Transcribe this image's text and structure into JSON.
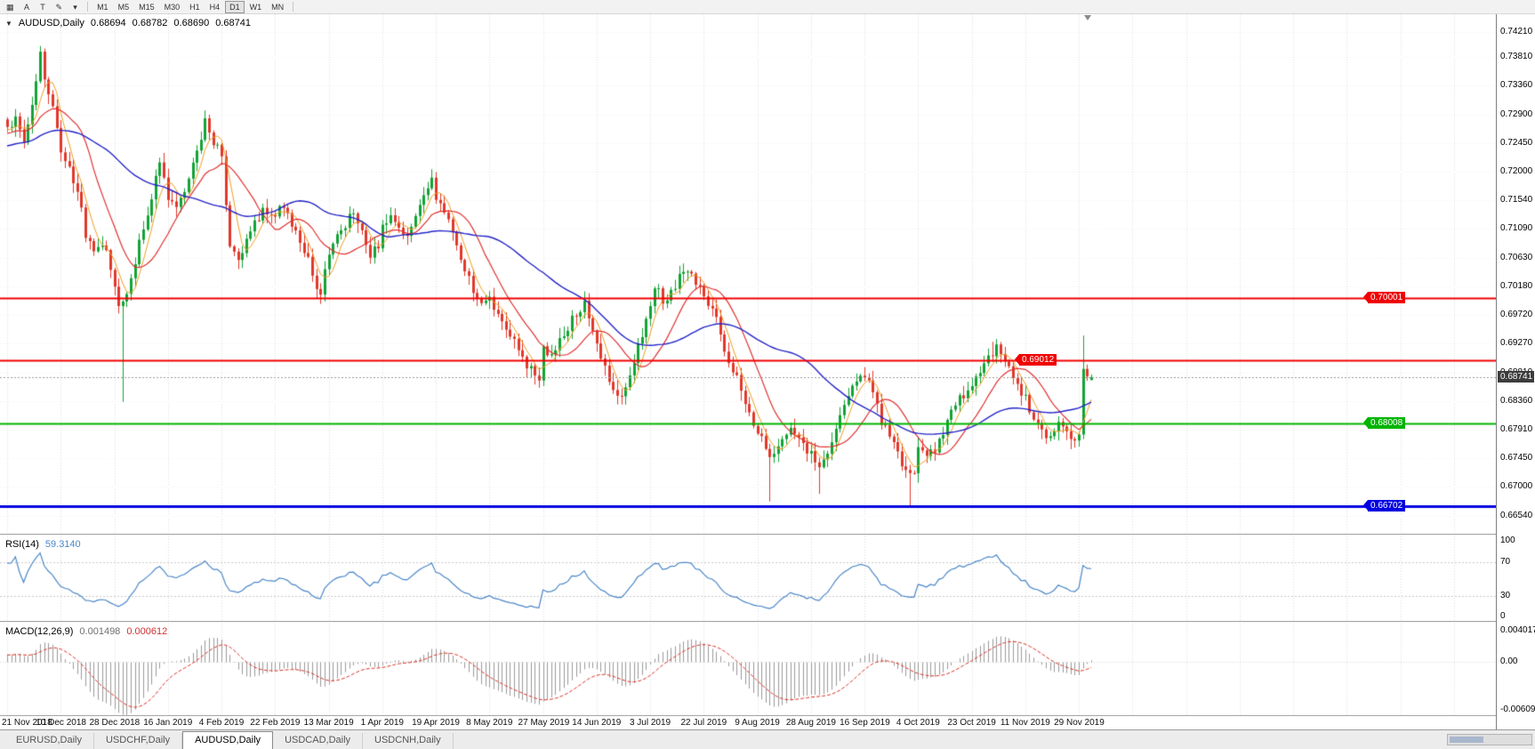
{
  "toolbar": {
    "tools": [
      {
        "name": "charts-grid",
        "glyph": "▦"
      },
      {
        "name": "cursor-a",
        "glyph": "A"
      },
      {
        "name": "text-label",
        "glyph": "T"
      },
      {
        "name": "draw-pencil",
        "glyph": "✎"
      },
      {
        "name": "draw-dropdown",
        "glyph": "▾"
      }
    ],
    "timeframes": [
      "M1",
      "M5",
      "M15",
      "M30",
      "H1",
      "H4",
      "D1",
      "W1",
      "MN"
    ],
    "active_timeframe": "D1"
  },
  "chart": {
    "title_icon": "▼",
    "symbol_period": "AUDUSD,Daily",
    "ohlc": {
      "open": "0.68694",
      "high": "0.68782",
      "low": "0.68690",
      "close": "0.68741"
    }
  },
  "price_axis": {
    "ticks": [
      "0.74210",
      "0.73810",
      "0.73360",
      "0.72900",
      "0.72450",
      "0.72000",
      "0.71540",
      "0.71090",
      "0.70630",
      "0.70180",
      "0.69720",
      "0.69270",
      "0.68810",
      "0.68360",
      "0.67910",
      "0.67450",
      "0.67000",
      "0.66540"
    ]
  },
  "rsi": {
    "label": "RSI(14)",
    "value": "59.3140",
    "ticks": [
      "100",
      "70",
      "30",
      "0"
    ],
    "levels": [
      70,
      30
    ],
    "color": "#4a86c8"
  },
  "macd": {
    "label": "MACD(12,26,9)",
    "macd_value": "0.001498",
    "signal_value": "0.000612",
    "ticks": [
      "0.004017",
      "0.00",
      "-0.00609"
    ],
    "histogram_color": "#9a9a9a",
    "signal_color": "#d93025"
  },
  "tabs": {
    "items": [
      "EURUSD,Daily",
      "USDCHF,Daily",
      "AUDUSD,Daily",
      "USDCAD,Daily",
      "USDCNH,Daily"
    ],
    "active": "AUDUSD,Daily"
  },
  "chart_data": {
    "type": "candlestick",
    "symbol": "AUDUSD",
    "period": "Daily",
    "title": "AUDUSD,Daily 0.68694 0.68782 0.68690 0.68741",
    "bid": 0.68741,
    "last": {
      "o": 0.68694,
      "h": 0.68782,
      "l": 0.6869,
      "c": 0.68741
    },
    "y_range": [
      0.6626,
      0.7449
    ],
    "x_ticks": [
      "21 Nov 2018",
      "10 Dec 2018",
      "28 Dec 2018",
      "16 Jan 2019",
      "4 Feb 2019",
      "22 Feb 2019",
      "13 Mar 2019",
      "1 Apr 2019",
      "19 Apr 2019",
      "8 May 2019",
      "27 May 2019",
      "14 Jun 2019",
      "3 Jul 2019",
      "22 Jul 2019",
      "9 Aug 2019",
      "28 Aug 2019",
      "16 Sep 2019",
      "4 Oct 2019",
      "23 Oct 2019",
      "11 Nov 2019",
      "29 Nov 2019"
    ],
    "colors": {
      "up": "#12a335",
      "down": "#e0382b"
    },
    "levels": [
      {
        "price": 0.70001,
        "label": "0.70001",
        "color": "#f00000",
        "width": 2,
        "label_anchor": "right"
      },
      {
        "price": 0.69012,
        "label": "0.69012",
        "color": "#f00000",
        "width": 2,
        "label_anchor": "mid"
      },
      {
        "price": 0.68008,
        "label": "0.68008",
        "color": "#00b400",
        "width": 2,
        "label_anchor": "right"
      },
      {
        "price": 0.66702,
        "label": "0.66702",
        "color": "#0000e0",
        "width": 3,
        "label_anchor": "right"
      }
    ],
    "moving_averages": [
      {
        "period": 5,
        "color": "#f09d1e",
        "width": 1
      },
      {
        "period": 13,
        "color": "#e03030",
        "width": 1.2
      },
      {
        "period": 40,
        "color": "#2424c8",
        "width": 1.4
      }
    ],
    "indicators": [
      {
        "name": "RSI",
        "period": 14,
        "current": 59.314
      },
      {
        "name": "MACD",
        "fast": 12,
        "slow": 26,
        "signal": 9,
        "macd": 0.001498,
        "signal_value": 0.000612
      }
    ],
    "anchors": [
      [
        0,
        0.7268
      ],
      [
        2,
        0.7288
      ],
      [
        4,
        0.7252
      ],
      [
        6,
        0.73
      ],
      [
        8,
        0.7385
      ],
      [
        9,
        0.734
      ],
      [
        11,
        0.73
      ],
      [
        13,
        0.723
      ],
      [
        15,
        0.72
      ],
      [
        17,
        0.717
      ],
      [
        19,
        0.71
      ],
      [
        21,
        0.707
      ],
      [
        23,
        0.709
      ],
      [
        25,
        0.7045
      ],
      [
        27,
        0.6985
      ],
      [
        28,
        0.7
      ],
      [
        30,
        0.7025
      ],
      [
        32,
        0.709
      ],
      [
        34,
        0.713
      ],
      [
        36,
        0.719
      ],
      [
        37,
        0.721
      ],
      [
        39,
        0.716
      ],
      [
        41,
        0.7145
      ],
      [
        43,
        0.7175
      ],
      [
        45,
        0.721
      ],
      [
        47,
        0.725
      ],
      [
        48,
        0.7285
      ],
      [
        50,
        0.7245
      ],
      [
        52,
        0.7225
      ],
      [
        53,
        0.715
      ],
      [
        54,
        0.7085
      ],
      [
        56,
        0.7065
      ],
      [
        58,
        0.709
      ],
      [
        60,
        0.7115
      ],
      [
        62,
        0.7145
      ],
      [
        64,
        0.7135
      ],
      [
        65,
        0.7125
      ],
      [
        67,
        0.715
      ],
      [
        69,
        0.712
      ],
      [
        71,
        0.7085
      ],
      [
        73,
        0.706
      ],
      [
        75,
        0.702
      ],
      [
        76,
        0.7005
      ],
      [
        78,
        0.707
      ],
      [
        80,
        0.7095
      ],
      [
        82,
        0.7115
      ],
      [
        84,
        0.7135
      ],
      [
        86,
        0.71
      ],
      [
        88,
        0.7065
      ],
      [
        90,
        0.7085
      ],
      [
        91,
        0.711
      ],
      [
        93,
        0.713
      ],
      [
        95,
        0.7115
      ],
      [
        97,
        0.71
      ],
      [
        99,
        0.713
      ],
      [
        101,
        0.716
      ],
      [
        103,
        0.7192
      ],
      [
        104,
        0.716
      ],
      [
        106,
        0.7135
      ],
      [
        108,
        0.71
      ],
      [
        110,
        0.7065
      ],
      [
        112,
        0.703
      ],
      [
        114,
        0.7
      ],
      [
        116,
        0.6988
      ],
      [
        117,
        0.6995
      ],
      [
        119,
        0.697
      ],
      [
        121,
        0.6945
      ],
      [
        123,
        0.693
      ],
      [
        125,
        0.6905
      ],
      [
        127,
        0.6885
      ],
      [
        129,
        0.6872
      ],
      [
        130,
        0.6925
      ],
      [
        132,
        0.6905
      ],
      [
        134,
        0.693
      ],
      [
        136,
        0.6955
      ],
      [
        138,
        0.6975
      ],
      [
        140,
        0.6995
      ],
      [
        142,
        0.695
      ],
      [
        143,
        0.692
      ],
      [
        145,
        0.6885
      ],
      [
        147,
        0.6855
      ],
      [
        149,
        0.6838
      ],
      [
        151,
        0.687
      ],
      [
        153,
        0.692
      ],
      [
        155,
        0.6965
      ],
      [
        156,
        0.699
      ],
      [
        157,
        0.702
      ],
      [
        159,
        0.6995
      ],
      [
        161,
        0.7005
      ],
      [
        163,
        0.703
      ],
      [
        165,
        0.704
      ],
      [
        167,
        0.7025
      ],
      [
        169,
        0.7005
      ],
      [
        171,
        0.6985
      ],
      [
        173,
        0.694
      ],
      [
        175,
        0.69
      ],
      [
        177,
        0.6875
      ],
      [
        179,
        0.683
      ],
      [
        181,
        0.68
      ],
      [
        182,
        0.6788
      ],
      [
        184,
        0.676
      ],
      [
        186,
        0.6745
      ],
      [
        188,
        0.6775
      ],
      [
        190,
        0.679
      ],
      [
        192,
        0.6775
      ],
      [
        194,
        0.676
      ],
      [
        195,
        0.6752
      ],
      [
        197,
        0.6735
      ],
      [
        199,
        0.6745
      ],
      [
        201,
        0.679
      ],
      [
        203,
        0.683
      ],
      [
        205,
        0.6862
      ],
      [
        207,
        0.6878
      ],
      [
        208,
        0.6872
      ],
      [
        210,
        0.685
      ],
      [
        212,
        0.6805
      ],
      [
        214,
        0.678
      ],
      [
        216,
        0.6755
      ],
      [
        218,
        0.672
      ],
      [
        220,
        0.6728
      ],
      [
        221,
        0.6768
      ],
      [
        223,
        0.6745
      ],
      [
        225,
        0.6762
      ],
      [
        227,
        0.6785
      ],
      [
        229,
        0.6815
      ],
      [
        231,
        0.684
      ],
      [
        233,
        0.6855
      ],
      [
        234,
        0.6862
      ],
      [
        236,
        0.688
      ],
      [
        238,
        0.6905
      ],
      [
        240,
        0.6922
      ],
      [
        242,
        0.69
      ],
      [
        244,
        0.6875
      ],
      [
        246,
        0.6852
      ],
      [
        247,
        0.684
      ],
      [
        249,
        0.6812
      ],
      [
        251,
        0.679
      ],
      [
        253,
        0.6778
      ],
      [
        255,
        0.6805
      ],
      [
        257,
        0.6788
      ],
      [
        259,
        0.6772
      ],
      [
        260,
        0.679
      ],
      [
        261,
        0.689
      ],
      [
        262,
        0.6868
      ],
      [
        263,
        0.6874
      ]
    ],
    "spikes": [
      {
        "i": 28,
        "low": 0.6835
      },
      {
        "i": 185,
        "low": 0.6677
      },
      {
        "i": 197,
        "low": 0.6689
      },
      {
        "i": 219,
        "low": 0.6671
      },
      {
        "i": 239,
        "high": 0.693
      },
      {
        "i": 261,
        "high": 0.694
      }
    ]
  }
}
